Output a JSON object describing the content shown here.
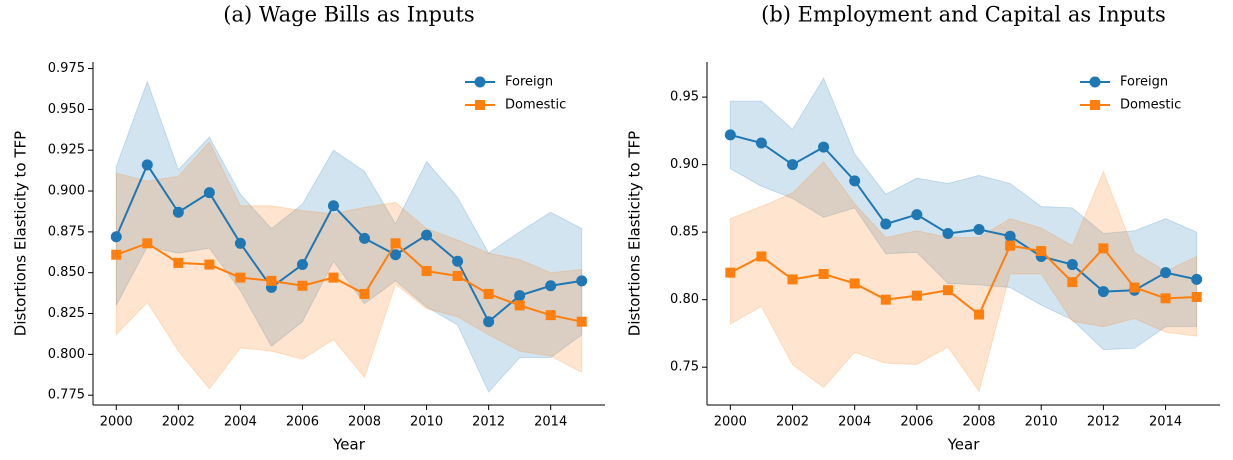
{
  "chart_data": [
    {
      "type": "line",
      "title": "(a) Wage Bills as Inputs",
      "x_label": "Year",
      "y_label": "Distortions Elasticity to TFP",
      "x": [
        2000,
        2001,
        2002,
        2003,
        2004,
        2005,
        2006,
        2007,
        2008,
        2009,
        2010,
        2011,
        2012,
        2013,
        2014,
        2015
      ],
      "xlim": [
        1999.25,
        2015.75
      ],
      "xticks": [
        2000,
        2002,
        2004,
        2006,
        2008,
        2010,
        2012,
        2014
      ],
      "ylim": [
        0.769,
        0.979
      ],
      "yticks": [
        0.775,
        {
          "value": 0.8,
          "label": "0.800"
        },
        0.825,
        {
          "value": 0.85,
          "label": "0.850"
        },
        0.875,
        {
          "value": 0.9,
          "label": "0.900"
        },
        0.925,
        {
          "value": 0.95,
          "label": "0.950"
        },
        0.975
      ],
      "legend": "upper right",
      "series": [
        {
          "name": "Foreign",
          "color": "#1f77b4",
          "marker": "circle",
          "values": [
            0.872,
            0.916,
            0.887,
            0.899,
            0.868,
            0.841,
            0.855,
            0.891,
            0.871,
            0.861,
            0.873,
            0.857,
            0.82,
            0.836,
            0.842,
            0.845
          ],
          "upper": [
            0.915,
            0.967,
            0.913,
            0.933,
            0.898,
            0.877,
            0.892,
            0.925,
            0.912,
            0.88,
            0.918,
            0.896,
            0.862,
            0.875,
            0.887,
            0.877
          ],
          "lower": [
            0.83,
            0.866,
            0.862,
            0.865,
            0.839,
            0.805,
            0.82,
            0.857,
            0.831,
            0.845,
            0.829,
            0.818,
            0.777,
            0.798,
            0.798,
            0.812
          ]
        },
        {
          "name": "Domestic",
          "color": "#ff7f0e",
          "marker": "square",
          "values": [
            0.861,
            0.868,
            0.856,
            0.855,
            0.847,
            0.845,
            0.842,
            0.847,
            0.837,
            0.868,
            0.851,
            0.848,
            0.837,
            0.83,
            0.824,
            0.82
          ],
          "upper": [
            0.911,
            0.906,
            0.909,
            0.93,
            0.891,
            0.891,
            0.888,
            0.886,
            0.89,
            0.893,
            0.877,
            0.87,
            0.862,
            0.858,
            0.85,
            0.852
          ],
          "lower": [
            0.812,
            0.832,
            0.802,
            0.779,
            0.804,
            0.802,
            0.797,
            0.809,
            0.786,
            0.843,
            0.828,
            0.823,
            0.812,
            0.802,
            0.799,
            0.789
          ]
        }
      ]
    },
    {
      "type": "line",
      "title": "(b) Employment and Capital as Inputs",
      "x_label": "Year",
      "y_label": "Distortions Elasticity to TFP",
      "x": [
        2000,
        2001,
        2002,
        2003,
        2004,
        2005,
        2006,
        2007,
        2008,
        2009,
        2010,
        2011,
        2012,
        2013,
        2014,
        2015
      ],
      "xlim": [
        1999.25,
        2015.75
      ],
      "xticks": [
        2000,
        2002,
        2004,
        2006,
        2008,
        2010,
        2012,
        2014
      ],
      "ylim": [
        0.722,
        0.976
      ],
      "yticks": [
        0.75,
        {
          "value": 0.8,
          "label": "0.80"
        },
        0.85,
        {
          "value": 0.9,
          "label": "0.90"
        },
        0.95
      ],
      "legend": "upper right",
      "series": [
        {
          "name": "Foreign",
          "color": "#1f77b4",
          "marker": "circle",
          "values": [
            0.922,
            0.916,
            0.9,
            0.913,
            0.888,
            0.856,
            0.863,
            0.849,
            0.852,
            0.847,
            0.832,
            0.826,
            0.806,
            0.807,
            0.82,
            0.815
          ],
          "upper": [
            0.947,
            0.947,
            0.926,
            0.964,
            0.908,
            0.878,
            0.89,
            0.886,
            0.892,
            0.886,
            0.869,
            0.868,
            0.849,
            0.851,
            0.86,
            0.85
          ],
          "lower": [
            0.897,
            0.884,
            0.875,
            0.861,
            0.868,
            0.834,
            0.835,
            0.812,
            0.811,
            0.809,
            0.796,
            0.785,
            0.763,
            0.764,
            0.78,
            0.78
          ]
        },
        {
          "name": "Domestic",
          "color": "#ff7f0e",
          "marker": "square",
          "values": [
            0.82,
            0.832,
            0.815,
            0.819,
            0.812,
            0.8,
            0.803,
            0.807,
            0.789,
            0.84,
            0.836,
            0.813,
            0.838,
            0.809,
            0.801,
            0.802
          ],
          "upper": [
            0.86,
            0.869,
            0.879,
            0.902,
            0.871,
            0.846,
            0.851,
            0.846,
            0.846,
            0.86,
            0.853,
            0.84,
            0.895,
            0.835,
            0.821,
            0.832
          ],
          "lower": [
            0.782,
            0.795,
            0.752,
            0.735,
            0.761,
            0.753,
            0.752,
            0.765,
            0.732,
            0.819,
            0.819,
            0.784,
            0.78,
            0.786,
            0.776,
            0.773
          ]
        }
      ]
    }
  ]
}
